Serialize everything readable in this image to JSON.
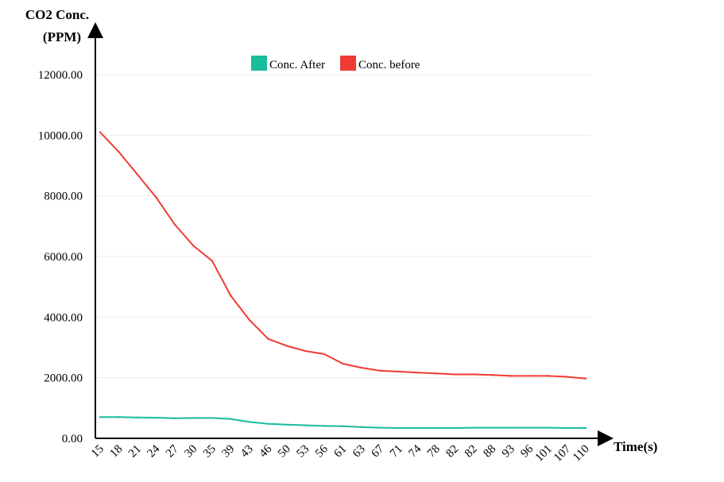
{
  "chart_data": {
    "type": "line",
    "title": "",
    "ylabel_line1": "CO2 Conc.",
    "ylabel_line2": "(PPM)",
    "xlabel": "Time(s)",
    "ylim": [
      0,
      12000
    ],
    "yticks": [
      "0.00",
      "2000.00",
      "4000.00",
      "6000.00",
      "8000.00",
      "10000.00",
      "12000.00"
    ],
    "ytick_values": [
      0,
      2000,
      4000,
      6000,
      8000,
      10000,
      12000
    ],
    "categories": [
      "15",
      "18",
      "21",
      "24",
      "27",
      "30",
      "35",
      "39",
      "43",
      "46",
      "50",
      "53",
      "56",
      "61",
      "63",
      "67",
      "71",
      "74",
      "78",
      "82",
      "82",
      "88",
      "93",
      "96",
      "101",
      "107",
      "110"
    ],
    "grid": "horizontal",
    "legend_position": "top",
    "series": [
      {
        "name": "Conc. After",
        "color": "#1abc9c",
        "values": [
          700,
          700,
          690,
          680,
          660,
          670,
          670,
          640,
          540,
          480,
          450,
          430,
          410,
          400,
          370,
          350,
          340,
          340,
          340,
          340,
          350,
          350,
          350,
          350,
          350,
          340,
          340
        ]
      },
      {
        "name": "Conc. before",
        "color": "#f03b35",
        "values": [
          10100,
          9450,
          8700,
          7950,
          7050,
          6350,
          5850,
          4700,
          3900,
          3280,
          3050,
          2880,
          2780,
          2460,
          2330,
          2230,
          2200,
          2170,
          2140,
          2110,
          2110,
          2090,
          2060,
          2060,
          2060,
          2030,
          1970
        ]
      }
    ]
  }
}
